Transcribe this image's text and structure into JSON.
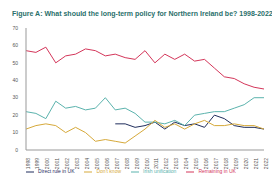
{
  "chart_data": {
    "type": "line",
    "title": "Figure A: What should the long-term policy for Northern Ireland be? 1998-2022 (%)",
    "categories": [
      "1998",
      "1999",
      "2000",
      "2001",
      "2002",
      "2003",
      "2004",
      "2005",
      "2006",
      "2007",
      "2008",
      "2009",
      "2010",
      "2011",
      "2012",
      "2013",
      "2014",
      "2015",
      "2016",
      "2017",
      "2018",
      "2019",
      "2020",
      "2021",
      "2022"
    ],
    "series": [
      {
        "name": "Remaining in UK",
        "color": "#d4365a",
        "values": [
          57,
          56,
          59,
          50,
          54,
          55,
          58,
          57,
          54,
          55,
          53,
          52,
          57,
          50,
          55,
          52,
          55,
          51,
          52,
          47,
          42,
          41,
          38,
          36,
          35
        ]
      },
      {
        "name": "Direct rule in UK",
        "color": "#1f2d5c",
        "values": [
          null,
          null,
          null,
          null,
          null,
          null,
          null,
          null,
          null,
          15,
          15,
          13,
          14,
          16,
          12,
          16,
          14,
          15,
          13,
          20,
          18,
          14,
          13,
          13,
          12
        ]
      },
      {
        "name": "Irish unification",
        "color": "#5bb3ad",
        "values": [
          22,
          21,
          18,
          28,
          24,
          25,
          23,
          24,
          30,
          23,
          24,
          21,
          16,
          16,
          15,
          17,
          14,
          20,
          21,
          22,
          22,
          24,
          26,
          30,
          30
        ]
      },
      {
        "name": "Don't know",
        "color": "#d6a93a",
        "values": [
          12,
          14,
          15,
          14,
          10,
          13,
          10,
          5,
          6,
          5,
          4,
          8,
          12,
          17,
          13,
          15,
          12,
          15,
          17,
          14,
          14,
          15,
          14,
          14,
          12
        ]
      }
    ],
    "ylim": [
      0,
      70
    ],
    "yticks": [
      0,
      10,
      20,
      30,
      40,
      50,
      60,
      70
    ],
    "grid": false,
    "legend": "bottom"
  }
}
